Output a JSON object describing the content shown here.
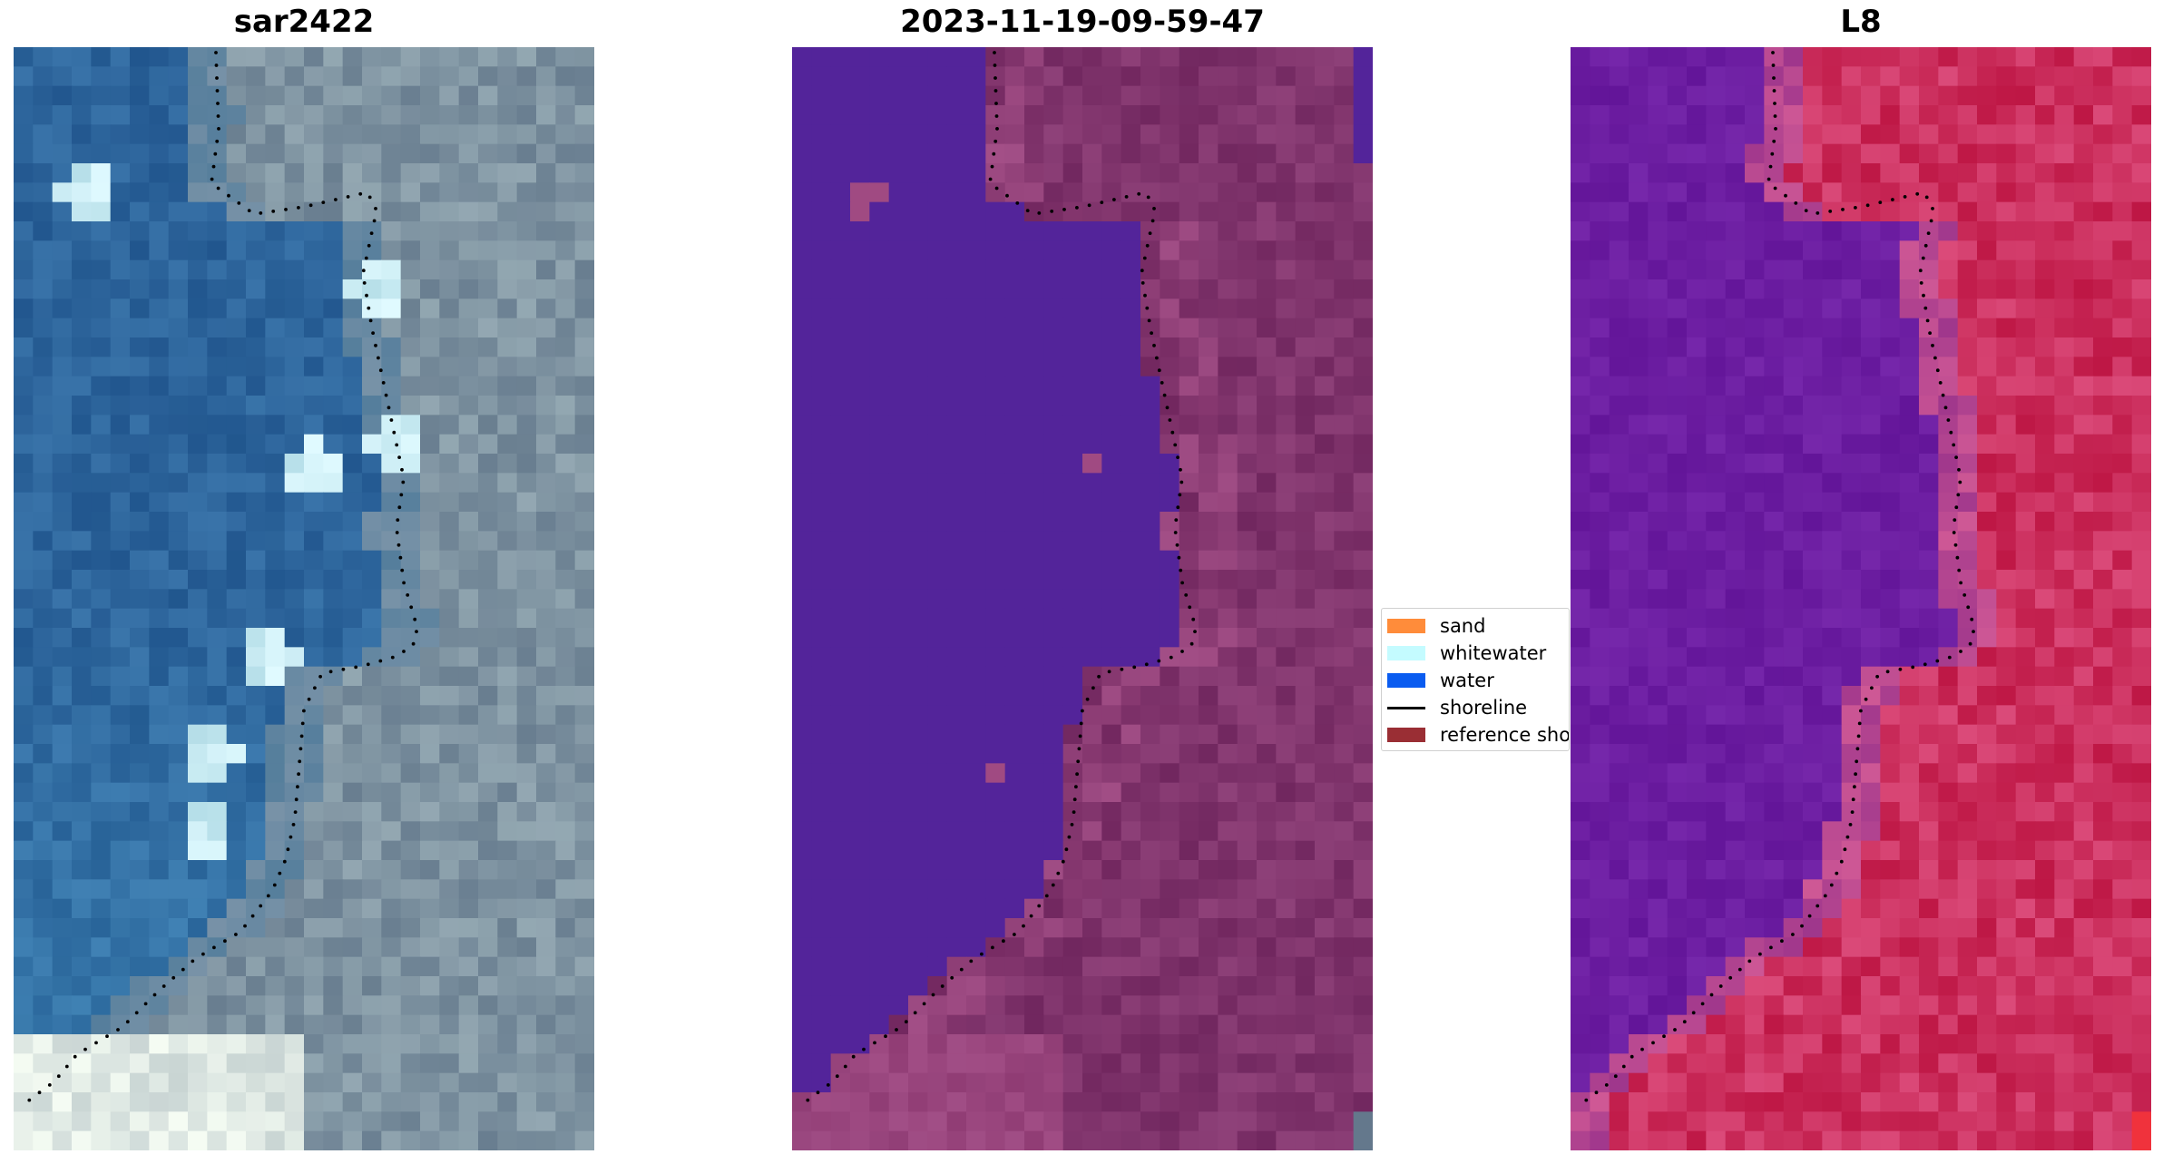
{
  "chart_data": [
    {
      "type": "heatmap",
      "title": "sar2422",
      "description_colormap": "true-color RGB",
      "palette": {
        "water_deep": "#2a5f97",
        "water_light": "#3f86b6",
        "land": "#74899b",
        "bright": "#d7e3e2",
        "whitewater": "#bfe8f2"
      }
    },
    {
      "type": "heatmap",
      "title": "2023-11-19-09-59-47",
      "palette": {
        "water": "#53249a",
        "land": "#7a3068",
        "land_light": "#a04a82"
      }
    },
    {
      "type": "heatmap",
      "title": "L8",
      "palette": {
        "water": "#6a1ca0",
        "land": "#c8214f",
        "land_light": "#d85a8a"
      }
    }
  ],
  "legend": {
    "entries": [
      {
        "label": "sand",
        "color": "#ff8c3a",
        "kind": "patch"
      },
      {
        "label": "whitewater",
        "color": "#c4fbff",
        "kind": "patch"
      },
      {
        "label": "water",
        "color": "#0a5cf0",
        "kind": "patch"
      },
      {
        "label": "shoreline",
        "color": "#000000",
        "kind": "line"
      },
      {
        "label": "reference shoreline",
        "color": "#9a2e34",
        "kind": "patch"
      }
    ]
  }
}
